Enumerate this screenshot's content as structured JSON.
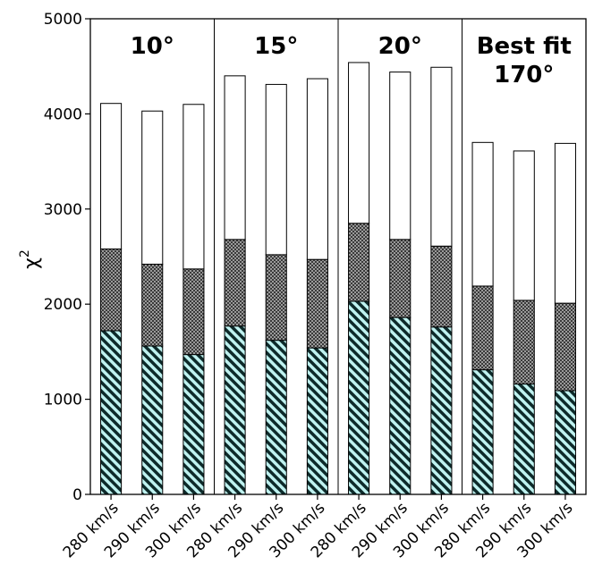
{
  "chart_data": {
    "type": "bar",
    "stacked": true,
    "ylabel": "χ",
    "ylabel_superscript": "2",
    "ylim": [
      0,
      5000
    ],
    "yticks": [
      "0",
      "1000",
      "2000",
      "3000",
      "4000",
      "5000"
    ],
    "groups": [
      {
        "title_lines": [
          "10°"
        ]
      },
      {
        "title_lines": [
          "15°"
        ]
      },
      {
        "title_lines": [
          "20°"
        ]
      },
      {
        "title_lines": [
          "Best fit",
          "170°"
        ]
      }
    ],
    "categories": [
      "280 km/s",
      "290 km/s",
      "300 km/s",
      "280 km/s",
      "290 km/s",
      "300 km/s",
      "280 km/s",
      "290 km/s",
      "300 km/s",
      "280 km/s",
      "290 km/s",
      "300 km/s"
    ],
    "series": [
      {
        "style": "hatched-cyan",
        "values": [
          1720,
          1560,
          1470,
          1770,
          1620,
          1540,
          2030,
          1860,
          1760,
          1310,
          1160,
          1090
        ]
      },
      {
        "style": "crosshatch-gray",
        "values": [
          860,
          860,
          900,
          910,
          900,
          930,
          820,
          820,
          850,
          880,
          880,
          920
        ]
      },
      {
        "style": "white",
        "values": [
          1530,
          1610,
          1730,
          1720,
          1790,
          1900,
          1690,
          1760,
          1880,
          1510,
          1570,
          1680
        ]
      }
    ],
    "totals": [
      4110,
      4030,
      4100,
      4400,
      4310,
      4370,
      4540,
      4440,
      4490,
      3700,
      3610,
      3690
    ],
    "colors": {
      "hatch_fg": "#0d2a2a",
      "hatch_bg": "#bff2f0",
      "crosshatch": "#6e6e6e",
      "top": "#ffffff"
    },
    "grid": false
  }
}
